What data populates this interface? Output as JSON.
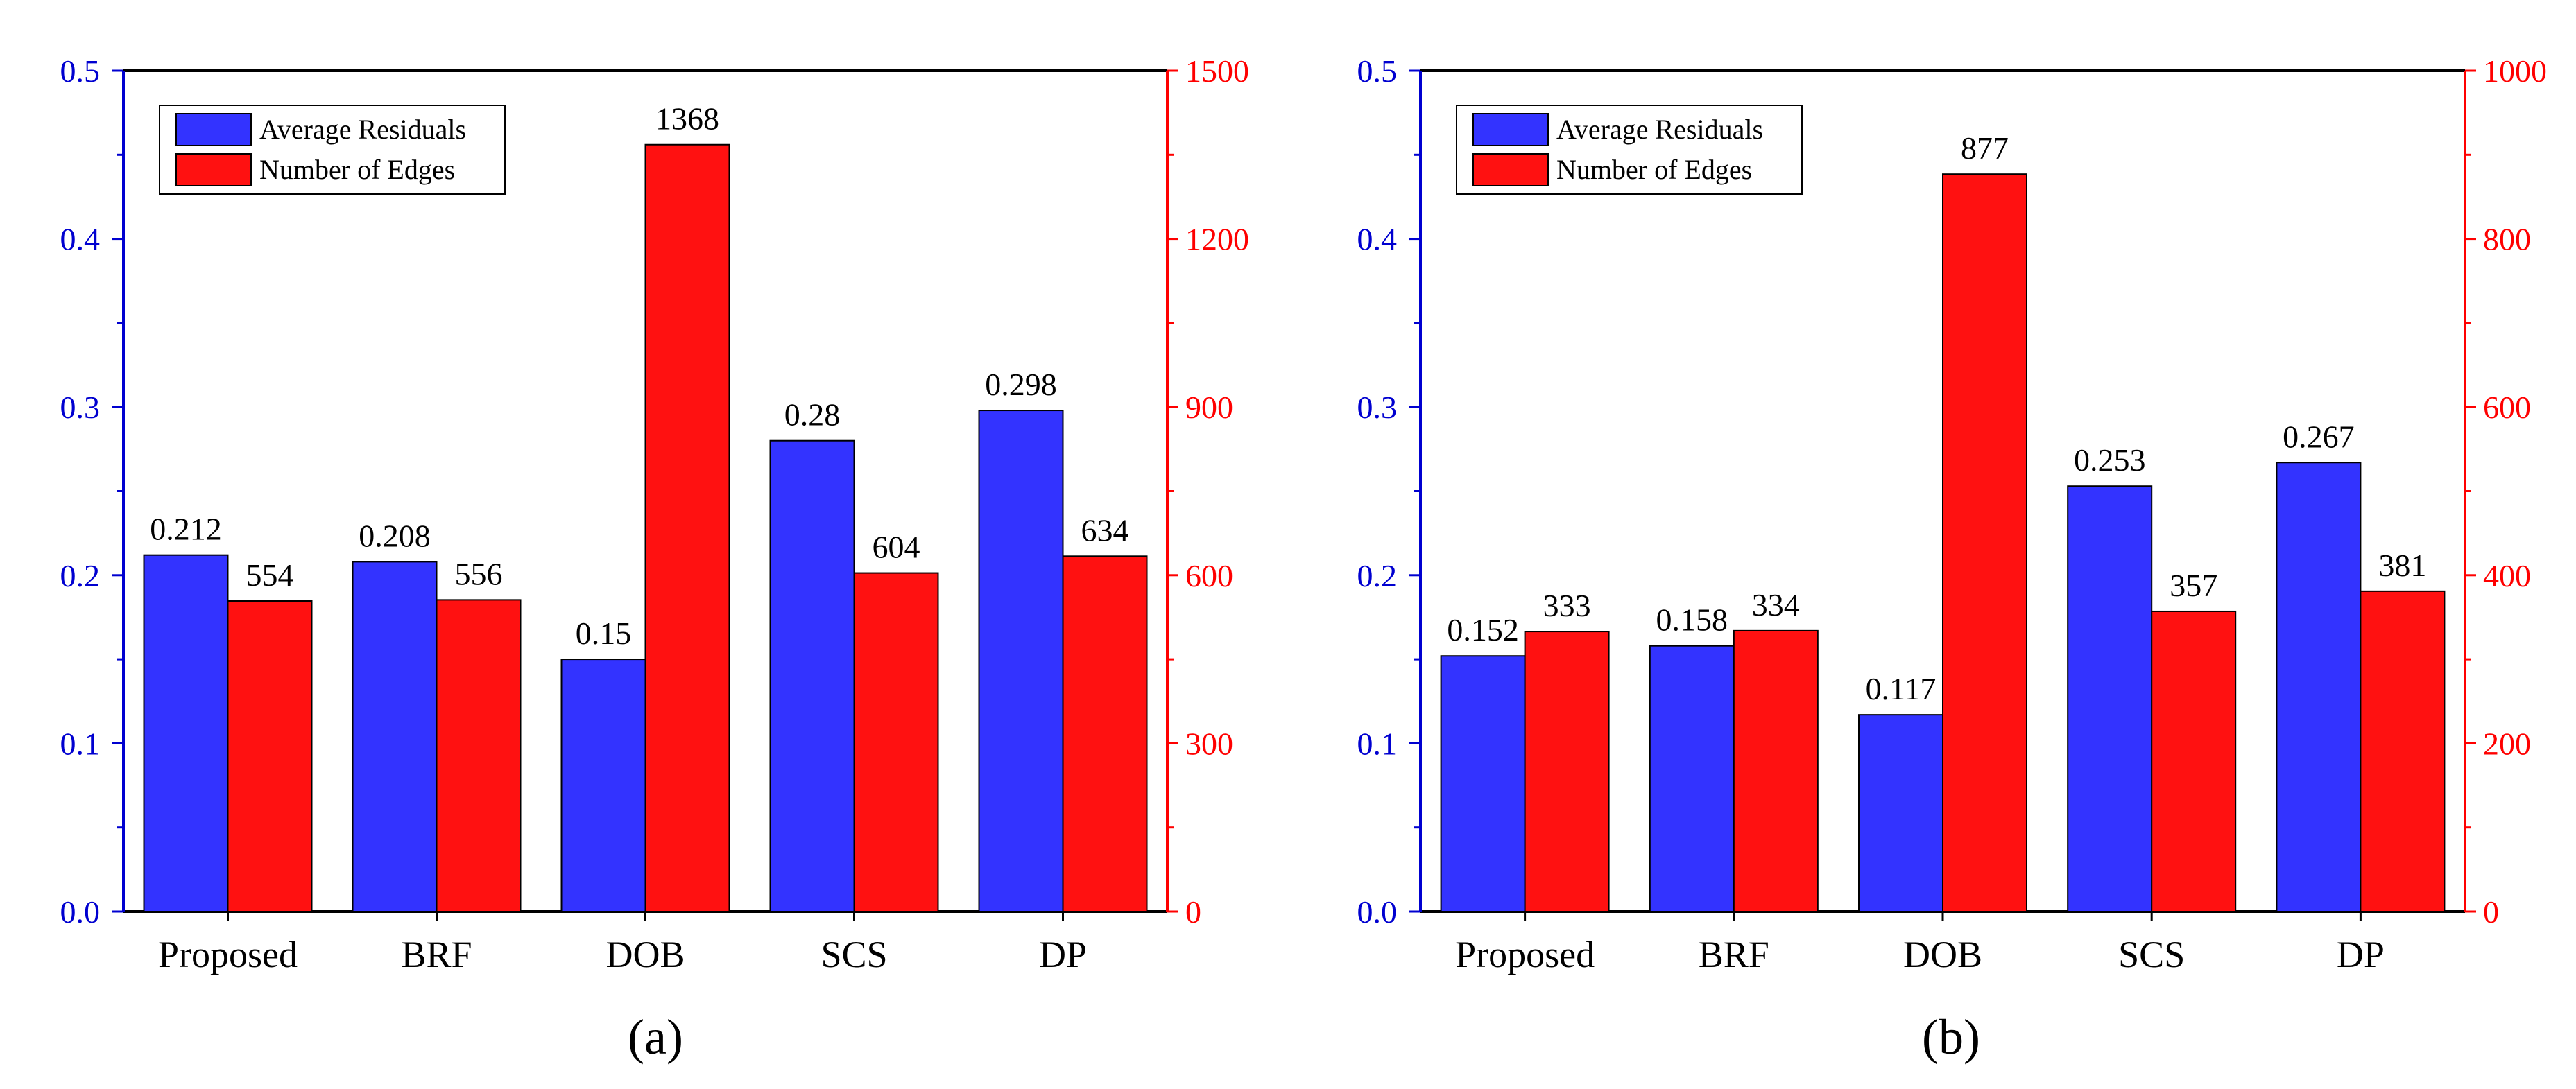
{
  "colors": {
    "left_axis": "#0000d0",
    "right_axis": "#ff0000",
    "residual_bar": "#3333ff",
    "edges_bar": "#ff1111",
    "frame": "#000000"
  },
  "chart_data": [
    {
      "type": "bar",
      "panel_label": "(a)",
      "categories": [
        "Proposed",
        "BRF",
        "DOB",
        "SCS",
        "DP"
      ],
      "series": [
        {
          "name": "Average Residuals",
          "axis": "left",
          "values": [
            0.212,
            0.208,
            0.15,
            0.28,
            0.298
          ],
          "labels": [
            "0.212",
            "0.208",
            "0.15",
            "0.28",
            "0.298"
          ]
        },
        {
          "name": "Number of Edges",
          "axis": "right",
          "values": [
            554,
            556,
            1368,
            604,
            634
          ],
          "labels": [
            "554",
            "556",
            "1368",
            "604",
            "634"
          ]
        }
      ],
      "left_axis": {
        "ylim": [
          0,
          0.5
        ],
        "ticks": [
          "0.0",
          "0.1",
          "0.2",
          "0.3",
          "0.4",
          "0.5"
        ]
      },
      "right_axis": {
        "ylim": [
          0,
          1500
        ],
        "ticks": [
          "0",
          "300",
          "600",
          "900",
          "1200",
          "1500"
        ]
      },
      "legend": {
        "position": "top-left",
        "entries": [
          "Average Residuals",
          "Number of Edges"
        ]
      }
    },
    {
      "type": "bar",
      "panel_label": "(b)",
      "categories": [
        "Proposed",
        "BRF",
        "DOB",
        "SCS",
        "DP"
      ],
      "series": [
        {
          "name": "Average Residuals",
          "axis": "left",
          "values": [
            0.152,
            0.158,
            0.117,
            0.253,
            0.267
          ],
          "labels": [
            "0.152",
            "0.158",
            "0.117",
            "0.253",
            "0.267"
          ]
        },
        {
          "name": "Number of Edges",
          "axis": "right",
          "values": [
            333,
            334,
            877,
            357,
            381
          ],
          "labels": [
            "333",
            "334",
            "877",
            "357",
            "381"
          ]
        }
      ],
      "left_axis": {
        "ylim": [
          0,
          0.5
        ],
        "ticks": [
          "0.0",
          "0.1",
          "0.2",
          "0.3",
          "0.4",
          "0.5"
        ]
      },
      "right_axis": {
        "ylim": [
          0,
          1000
        ],
        "ticks": [
          "0",
          "200",
          "400",
          "600",
          "800",
          "1000"
        ]
      },
      "legend": {
        "position": "top-left",
        "entries": [
          "Average Residuals",
          "Number of Edges"
        ]
      }
    }
  ]
}
